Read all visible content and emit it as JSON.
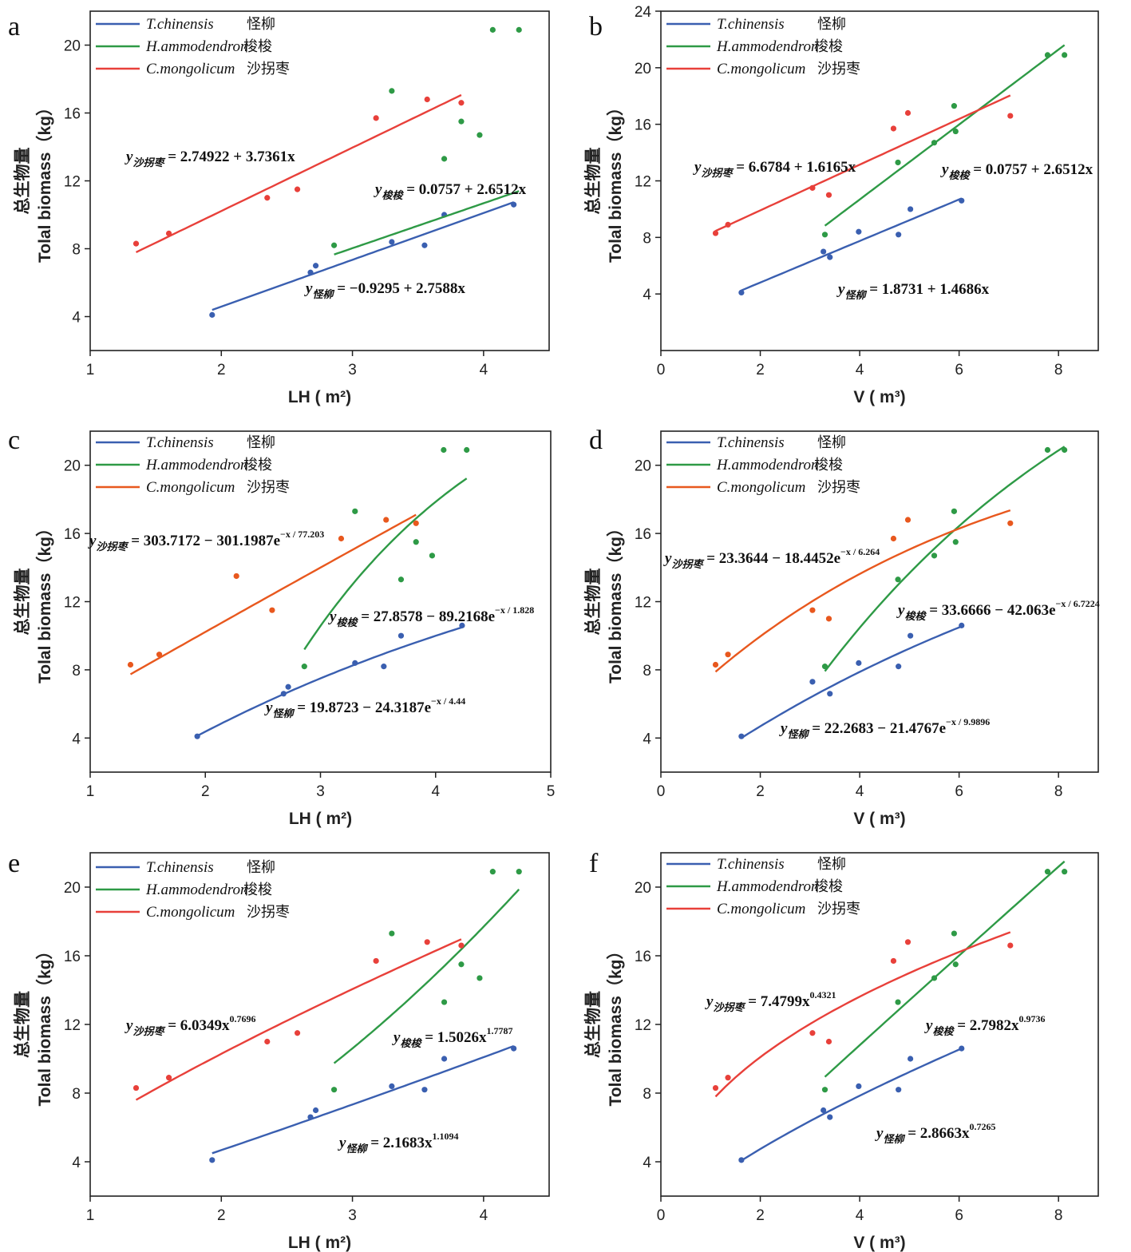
{
  "colors": {
    "blue": "#3a5fb0",
    "green": "#2e9a46",
    "red": "#e8403a",
    "orange": "#e8581e"
  },
  "species": [
    {
      "latin": "T.chinensis",
      "cn": "怪柳"
    },
    {
      "latin": "H.ammodendron",
      "cn": "梭梭"
    },
    {
      "latin": "C.mongolicum",
      "cn": "沙拐枣"
    }
  ],
  "chart_data": [
    {
      "id": "a",
      "type": "scatter",
      "xlabel": "LH ( m²)",
      "ylabel": "Tolal biomass（kg）",
      "ylabel_cn": "总生物量",
      "xlim": [
        1,
        4.5
      ],
      "ylim": [
        2,
        22
      ],
      "xticks": [
        1,
        2,
        3,
        4
      ],
      "yticks": [
        4,
        8,
        12,
        16,
        20
      ],
      "series": [
        {
          "name": "T.chinensis",
          "color": "blue",
          "x": [
            1.93,
            2.68,
            2.72,
            3.3,
            3.55,
            3.7,
            4.23
          ],
          "y": [
            4.1,
            6.6,
            7.0,
            8.4,
            8.2,
            10.0,
            10.6
          ],
          "fit": {
            "kind": "linear",
            "a": -0.9295,
            "b": 2.7588,
            "x0": 1.93,
            "x1": 4.23
          }
        },
        {
          "name": "H.ammodendron",
          "color": "green",
          "x": [
            2.86,
            3.3,
            3.7,
            3.83,
            3.97,
            4.07,
            4.27
          ],
          "y": [
            8.2,
            17.3,
            13.3,
            15.5,
            14.7,
            20.9,
            20.9
          ],
          "fit": {
            "kind": "linear",
            "a": 0.0757,
            "b": 2.6512,
            "x0": 2.86,
            "x1": 4.27
          }
        },
        {
          "name": "C.mongolicum",
          "color": "red",
          "x": [
            1.35,
            1.6,
            2.35,
            2.58,
            3.18,
            3.57,
            3.83
          ],
          "y": [
            8.3,
            8.9,
            11.0,
            11.5,
            15.7,
            16.8,
            16.6
          ],
          "fit": {
            "kind": "linear",
            "a": 2.74922,
            "b": 3.7361,
            "x0": 1.35,
            "x1": 3.83
          }
        }
      ],
      "equations": {
        "cm": "y沙拐枣 = 2.74922 + 3.7361x",
        "ha": "y梭梭 = 0.0757 + 2.6512x",
        "tc": "y怪柳 = −0.9295 + 2.7588x"
      }
    },
    {
      "id": "b",
      "type": "scatter",
      "xlabel": "V ( m³)",
      "ylabel": "Tolal biomass（kg）",
      "ylabel_cn": "总生物量",
      "xlim": [
        0,
        8.8
      ],
      "ylim": [
        0,
        24
      ],
      "xticks": [
        0,
        2,
        4,
        6,
        8
      ],
      "yticks": [
        4,
        8,
        12,
        16,
        20,
        24
      ],
      "series": [
        {
          "name": "T.chinensis",
          "color": "blue",
          "x": [
            1.62,
            3.27,
            3.4,
            3.98,
            4.78,
            5.02,
            6.05
          ],
          "y": [
            4.1,
            7.0,
            6.6,
            8.4,
            8.2,
            10.0,
            10.6
          ],
          "fit": {
            "kind": "linear",
            "a": 1.8731,
            "b": 1.4686,
            "x0": 1.62,
            "x1": 6.05
          }
        },
        {
          "name": "H.ammodendron",
          "color": "green",
          "x": [
            3.3,
            4.77,
            5.5,
            5.9,
            5.93,
            7.78,
            8.12
          ],
          "y": [
            8.2,
            13.3,
            14.7,
            17.3,
            15.5,
            20.9,
            20.9
          ],
          "fit": {
            "kind": "linear",
            "a": 0.0757,
            "b": 2.6512,
            "x0": 3.3,
            "x1": 8.12
          }
        },
        {
          "name": "C.mongolicum",
          "color": "red",
          "x": [
            1.1,
            1.35,
            3.05,
            3.38,
            4.68,
            4.97,
            7.03
          ],
          "y": [
            8.3,
            8.9,
            11.5,
            11.0,
            15.7,
            16.8,
            16.6
          ],
          "fit": {
            "kind": "linear",
            "a": 6.6784,
            "b": 1.6165,
            "x0": 1.1,
            "x1": 7.03
          }
        }
      ],
      "equations": {
        "cm": "y沙拐枣 = 6.6784 + 1.6165x",
        "ha": "y梭梭 = 0.0757 + 2.6512x",
        "tc": "y怪柳 = 1.8731 + 1.4686x"
      }
    },
    {
      "id": "c",
      "type": "scatter",
      "xlabel": "LH ( m²)",
      "ylabel": "Tolal biomass（kg）",
      "ylabel_cn": "总生物量",
      "xlim": [
        1,
        5
      ],
      "ylim": [
        2,
        22
      ],
      "xticks": [
        1,
        2,
        3,
        4,
        5
      ],
      "yticks": [
        4,
        8,
        12,
        16,
        20
      ],
      "series": [
        {
          "name": "T.chinensis",
          "color": "blue",
          "x": [
            1.93,
            2.68,
            2.72,
            3.3,
            3.55,
            3.7,
            4.23
          ],
          "y": [
            4.1,
            6.6,
            7.0,
            8.4,
            8.2,
            10.0,
            10.6
          ],
          "fit": {
            "kind": "exp",
            "a": 19.8723,
            "b": 24.3187,
            "c": 4.44,
            "x0": 1.93,
            "x1": 4.23
          }
        },
        {
          "name": "H.ammodendron",
          "color": "green",
          "x": [
            2.86,
            3.3,
            3.7,
            3.83,
            3.97,
            4.07,
            4.27
          ],
          "y": [
            8.2,
            17.3,
            13.3,
            15.5,
            14.7,
            20.9,
            20.9
          ],
          "fit": {
            "kind": "exp",
            "a": 27.8578,
            "b": 89.2168,
            "c": 1.828,
            "x0": 2.86,
            "x1": 4.27
          }
        },
        {
          "name": "C.mongolicum",
          "color": "orange",
          "x": [
            1.35,
            1.6,
            2.27,
            2.58,
            3.18,
            3.57,
            3.83
          ],
          "y": [
            8.3,
            8.9,
            13.5,
            11.5,
            15.7,
            16.8,
            16.6
          ],
          "fit": {
            "kind": "exp",
            "a": 303.7172,
            "b": 301.1987,
            "c": 77.203,
            "x0": 1.35,
            "x1": 3.83
          }
        }
      ],
      "equations": {
        "cm": "y沙拐枣 = 303.7172 − 301.1987e",
        "cm_exp": "x / 77.203",
        "ha": "y梭梭 = 27.8578 − 89.2168e",
        "ha_exp": "x / 1.828",
        "tc": "y怪柳 = 19.8723 − 24.3187e",
        "tc_exp": "x / 4.44"
      }
    },
    {
      "id": "d",
      "type": "scatter",
      "xlabel": "V ( m³)",
      "ylabel": "Tolal biomass（kg）",
      "ylabel_cn": "总生物量",
      "xlim": [
        0,
        8.8
      ],
      "ylim": [
        2,
        22
      ],
      "xticks": [
        0,
        2,
        4,
        6,
        8
      ],
      "yticks": [
        4,
        8,
        12,
        16,
        20
      ],
      "series": [
        {
          "name": "T.chinensis",
          "color": "blue",
          "x": [
            1.62,
            3.05,
            3.4,
            3.98,
            4.78,
            5.02,
            6.05
          ],
          "y": [
            4.1,
            7.3,
            6.6,
            8.4,
            8.2,
            10.0,
            10.6
          ],
          "fit": {
            "kind": "exp",
            "a": 22.2683,
            "b": 21.4767,
            "c": 9.9896,
            "x0": 1.62,
            "x1": 6.05
          }
        },
        {
          "name": "H.ammodendron",
          "color": "green",
          "x": [
            3.3,
            4.77,
            5.5,
            5.9,
            5.93,
            7.78,
            8.12
          ],
          "y": [
            8.2,
            13.3,
            14.7,
            17.3,
            15.5,
            20.9,
            20.9
          ],
          "fit": {
            "kind": "exp",
            "a": 33.6666,
            "b": 42.063,
            "c": 6.7224,
            "x0": 3.3,
            "x1": 8.12
          }
        },
        {
          "name": "C.mongolicum",
          "color": "orange",
          "x": [
            1.1,
            1.35,
            3.05,
            3.38,
            4.68,
            4.97,
            7.03
          ],
          "y": [
            8.3,
            8.9,
            11.5,
            11.0,
            15.7,
            16.8,
            16.6
          ],
          "fit": {
            "kind": "exp",
            "a": 23.3644,
            "b": 18.4452,
            "c": 6.264,
            "x0": 1.1,
            "x1": 7.03
          }
        }
      ],
      "equations": {
        "cm": "y沙拐枣 = 23.3644 − 18.4452e",
        "cm_exp": "x / 6.264",
        "ha": "y梭梭 = 33.6666 − 42.063e",
        "ha_exp": "x / 6.7224",
        "tc": "y怪柳 = 22.2683 − 21.4767e",
        "tc_exp": "x / 9.9896"
      }
    },
    {
      "id": "e",
      "type": "scatter",
      "xlabel": "LH ( m²)",
      "ylabel": "Tolal biomass（kg）",
      "ylabel_cn": "总生物量",
      "xlim": [
        1,
        4.5
      ],
      "ylim": [
        2,
        22
      ],
      "xticks": [
        1,
        2,
        3,
        4
      ],
      "yticks": [
        4,
        8,
        12,
        16,
        20
      ],
      "series": [
        {
          "name": "T.chinensis",
          "color": "blue",
          "x": [
            1.93,
            2.68,
            2.72,
            3.3,
            3.55,
            3.7,
            4.23
          ],
          "y": [
            4.1,
            6.6,
            7.0,
            8.4,
            8.2,
            10.0,
            10.6
          ],
          "fit": {
            "kind": "power",
            "a": 2.1683,
            "b": 1.1094,
            "x0": 1.93,
            "x1": 4.23
          }
        },
        {
          "name": "H.ammodendron",
          "color": "green",
          "x": [
            2.86,
            3.3,
            3.7,
            3.83,
            3.97,
            4.07,
            4.27
          ],
          "y": [
            8.2,
            17.3,
            13.3,
            15.5,
            14.7,
            20.9,
            20.9
          ],
          "fit": {
            "kind": "power",
            "a": 1.5026,
            "b": 1.7787,
            "x0": 2.86,
            "x1": 4.27
          }
        },
        {
          "name": "C.mongolicum",
          "color": "red",
          "x": [
            1.35,
            1.6,
            2.35,
            2.58,
            3.18,
            3.57,
            3.83
          ],
          "y": [
            8.3,
            8.9,
            11.0,
            11.5,
            15.7,
            16.8,
            16.6
          ],
          "fit": {
            "kind": "power",
            "a": 6.0349,
            "b": 0.7696,
            "x0": 1.35,
            "x1": 3.83
          }
        }
      ],
      "equations": {
        "cm": "y沙拐枣 = 6.0349x",
        "cm_exp": "0.7696",
        "ha": "y梭梭 = 1.5026x",
        "ha_exp": "1.7787",
        "tc": "y怪柳 = 2.1683x",
        "tc_exp": "1.1094"
      }
    },
    {
      "id": "f",
      "type": "scatter",
      "xlabel": "V ( m³)",
      "ylabel": "Tolal biomass（kg）",
      "ylabel_cn": "总生物量",
      "xlim": [
        0,
        8.8
      ],
      "ylim": [
        2,
        22
      ],
      "xticks": [
        0,
        2,
        4,
        6,
        8
      ],
      "yticks": [
        4,
        8,
        12,
        16,
        20
      ],
      "series": [
        {
          "name": "T.chinensis",
          "color": "blue",
          "x": [
            1.62,
            3.27,
            3.4,
            3.98,
            4.78,
            5.02,
            6.05
          ],
          "y": [
            4.1,
            7.0,
            6.6,
            8.4,
            8.2,
            10.0,
            10.6
          ],
          "fit": {
            "kind": "power",
            "a": 2.8663,
            "b": 0.7265,
            "x0": 1.62,
            "x1": 6.05
          }
        },
        {
          "name": "H.ammodendron",
          "color": "green",
          "x": [
            3.3,
            4.77,
            5.5,
            5.9,
            5.93,
            7.78,
            8.12
          ],
          "y": [
            8.2,
            13.3,
            14.7,
            17.3,
            15.5,
            20.9,
            20.9
          ],
          "fit": {
            "kind": "power",
            "a": 2.7982,
            "b": 0.9736,
            "x0": 3.3,
            "x1": 8.12
          }
        },
        {
          "name": "C.mongolicum",
          "color": "red",
          "x": [
            1.1,
            1.35,
            3.05,
            3.38,
            4.68,
            4.97,
            7.03
          ],
          "y": [
            8.3,
            8.9,
            11.5,
            11.0,
            15.7,
            16.8,
            16.6
          ],
          "fit": {
            "kind": "power",
            "a": 7.4799,
            "b": 0.4321,
            "x0": 1.1,
            "x1": 7.03
          }
        }
      ],
      "equations": {
        "cm": "y沙拐枣 = 7.4799x",
        "cm_exp": "0.4321",
        "ha": "y梭梭 = 2.7982x",
        "ha_exp": "0.9736",
        "tc": "y怪柳 = 2.8663x",
        "tc_exp": "0.7265"
      }
    }
  ]
}
